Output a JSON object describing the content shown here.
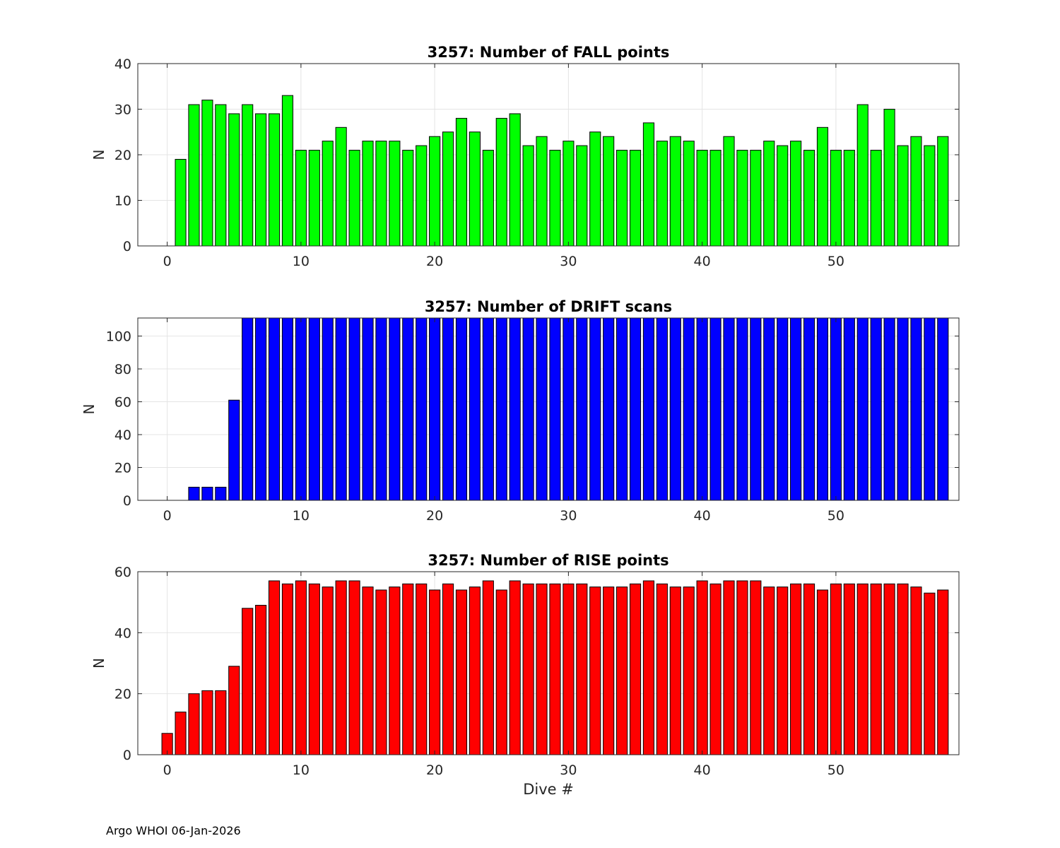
{
  "footer": "Argo WHOI 06-Jan-2026",
  "chart_data": [
    {
      "type": "bar",
      "title": "3257: Number of FALL points",
      "xlabel": "",
      "ylabel": "N",
      "color": "#00ff00",
      "xlim": [
        -2.2,
        59.2
      ],
      "ylim": [
        0,
        40
      ],
      "xticks": [
        0,
        10,
        20,
        30,
        40,
        50
      ],
      "yticks": [
        0,
        10,
        20,
        30,
        40
      ],
      "x": [
        1,
        2,
        3,
        4,
        5,
        6,
        7,
        8,
        9,
        10,
        11,
        12,
        13,
        14,
        15,
        16,
        17,
        18,
        19,
        20,
        21,
        22,
        23,
        24,
        25,
        26,
        27,
        28,
        29,
        30,
        31,
        32,
        33,
        34,
        35,
        36,
        37,
        38,
        39,
        40,
        41,
        42,
        43,
        44,
        45,
        46,
        47,
        48,
        49,
        50,
        51,
        52,
        53,
        54,
        55,
        56,
        57,
        58
      ],
      "values": [
        19,
        31,
        32,
        31,
        29,
        31,
        29,
        29,
        33,
        21,
        21,
        23,
        26,
        21,
        23,
        23,
        23,
        21,
        22,
        24,
        25,
        28,
        25,
        21,
        28,
        29,
        22,
        24,
        21,
        23,
        22,
        25,
        24,
        21,
        21,
        27,
        23,
        24,
        23,
        21,
        21,
        24,
        21,
        21,
        23,
        22,
        23,
        21,
        26,
        21,
        21,
        31,
        21,
        30,
        22,
        24,
        22,
        24
      ]
    },
    {
      "type": "bar",
      "title": "3257: Number of DRIFT scans",
      "xlabel": "",
      "ylabel": "N",
      "color": "#0000ff",
      "xlim": [
        -2.2,
        59.2
      ],
      "ylim": [
        0,
        111
      ],
      "xticks": [
        0,
        10,
        20,
        30,
        40,
        50
      ],
      "yticks": [
        0,
        20,
        40,
        60,
        80,
        100
      ],
      "x": [
        -1,
        0,
        1,
        2,
        3,
        4,
        5,
        6,
        7,
        8,
        9,
        10,
        11,
        12,
        13,
        14,
        15,
        16,
        17,
        18,
        19,
        20,
        21,
        22,
        23,
        24,
        25,
        26,
        27,
        28,
        29,
        30,
        31,
        32,
        33,
        34,
        35,
        36,
        37,
        38,
        39,
        40,
        41,
        42,
        43,
        44,
        45,
        46,
        47,
        48,
        49,
        50,
        51,
        52,
        53,
        54,
        55,
        56,
        57,
        58
      ],
      "values": [
        0,
        0,
        0,
        8,
        8,
        8,
        61,
        120,
        120,
        120,
        120,
        120,
        120,
        120,
        120,
        120,
        120,
        120,
        120,
        120,
        120,
        120,
        120,
        120,
        120,
        120,
        120,
        120,
        120,
        120,
        120,
        120,
        120,
        120,
        120,
        120,
        120,
        120,
        120,
        120,
        120,
        120,
        120,
        120,
        120,
        120,
        120,
        120,
        120,
        120,
        120,
        120,
        120,
        120,
        120,
        120,
        120,
        120,
        120,
        120
      ]
    },
    {
      "type": "bar",
      "title": "3257: Number of RISE points",
      "xlabel": "Dive #",
      "ylabel": "N",
      "color": "#ff0000",
      "xlim": [
        -2.2,
        59.2
      ],
      "ylim": [
        0,
        60
      ],
      "xticks": [
        0,
        10,
        20,
        30,
        40,
        50
      ],
      "yticks": [
        0,
        20,
        40,
        60
      ],
      "x": [
        0,
        1,
        2,
        3,
        4,
        5,
        6,
        7,
        8,
        9,
        10,
        11,
        12,
        13,
        14,
        15,
        16,
        17,
        18,
        19,
        20,
        21,
        22,
        23,
        24,
        25,
        26,
        27,
        28,
        29,
        30,
        31,
        32,
        33,
        34,
        35,
        36,
        37,
        38,
        39,
        40,
        41,
        42,
        43,
        44,
        45,
        46,
        47,
        48,
        49,
        50,
        51,
        52,
        53,
        54,
        55,
        56,
        57,
        58
      ],
      "values": [
        7,
        14,
        20,
        21,
        21,
        29,
        48,
        49,
        57,
        56,
        57,
        56,
        55,
        57,
        57,
        55,
        54,
        55,
        56,
        56,
        54,
        56,
        54,
        55,
        57,
        54,
        57,
        56,
        56,
        56,
        56,
        56,
        55,
        55,
        55,
        56,
        57,
        56,
        55,
        55,
        57,
        56,
        57,
        57,
        57,
        55,
        55,
        56,
        56,
        54,
        56,
        56,
        56,
        56,
        56,
        56,
        55,
        53,
        54
      ]
    }
  ]
}
